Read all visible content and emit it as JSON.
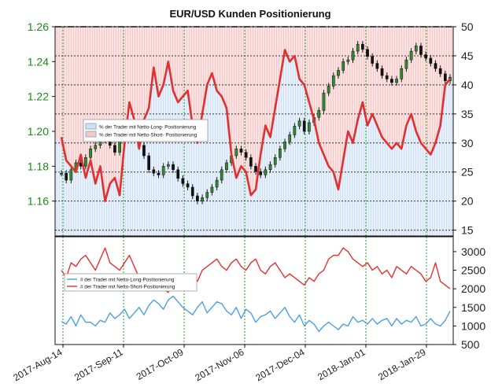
{
  "chart_data": [
    {
      "type": "line",
      "title": "EUR/USD Kunden Positionierung",
      "x_labels": [
        "2017-Aug-14",
        "2017-Sep-11",
        "2017-Oct-09",
        "2017-Nov-06",
        "2017-Dec-04",
        "2018-Jan-01",
        "2018-Jan-29"
      ],
      "ylim_left": [
        1.14,
        1.26
      ],
      "yticks_left": [
        "1.16",
        "1.18",
        "1.20",
        "1.22",
        "1.24",
        "1.26"
      ],
      "ylim_right": [
        14,
        50
      ],
      "yticks_right": [
        "15",
        "20",
        "25",
        "30",
        "35",
        "40",
        "45",
        "50"
      ],
      "reference_line": 50,
      "legend": [
        {
          "label": "% der Trader mit Netto-Long- Positionierung",
          "color": "#cfe2f5"
        },
        {
          "label": "% der Trader mit Netto-Short- Positionierung",
          "color": "#f7c6c6"
        }
      ],
      "colors": {
        "left_axis": "#1a8a1a",
        "short_line": "#e03030",
        "long_fill": "#e8f1fb",
        "short_fill": "#fbe3e3",
        "price": "#1a1a1a",
        "grid": "#2a9a2a"
      },
      "series": [
        {
          "name": "% der Trader mit Netto-Short- Positionierung",
          "axis": "right",
          "values": [
            31,
            27,
            26,
            25,
            28,
            24,
            27,
            23,
            26,
            20,
            23,
            24,
            21,
            30,
            37,
            34,
            29,
            34,
            36,
            43,
            38,
            40,
            44,
            39,
            37,
            38,
            39,
            33,
            30,
            35,
            40,
            42,
            39,
            38,
            36,
            28,
            24,
            26,
            25,
            21,
            22,
            28,
            33,
            31,
            36,
            41,
            46,
            44,
            45,
            41,
            40,
            37,
            34,
            30,
            28,
            26,
            25,
            22,
            27,
            32,
            30,
            34,
            37,
            33,
            35,
            33,
            31,
            30,
            29,
            30,
            29,
            33,
            35,
            32,
            30,
            29,
            28,
            30,
            33,
            40,
            41
          ]
        },
        {
          "name": "EUR/USD",
          "axis": "left",
          "values": [
            1.176,
            1.172,
            1.178,
            1.182,
            1.18,
            1.185,
            1.19,
            1.192,
            1.195,
            1.198,
            1.192,
            1.188,
            1.196,
            1.199,
            1.2,
            1.196,
            1.192,
            1.186,
            1.178,
            1.176,
            1.175,
            1.18,
            1.181,
            1.178,
            1.173,
            1.17,
            1.168,
            1.163,
            1.16,
            1.162,
            1.165,
            1.168,
            1.172,
            1.178,
            1.182,
            1.186,
            1.19,
            1.188,
            1.185,
            1.18,
            1.177,
            1.175,
            1.178,
            1.181,
            1.185,
            1.19,
            1.194,
            1.198,
            1.203,
            1.206,
            1.2,
            1.205,
            1.208,
            1.212,
            1.222,
            1.226,
            1.232,
            1.235,
            1.24,
            1.241,
            1.246,
            1.25,
            1.247,
            1.243,
            1.239,
            1.236,
            1.232,
            1.23,
            1.228,
            1.23,
            1.236,
            1.241,
            1.246,
            1.249,
            1.244,
            1.242,
            1.239,
            1.236,
            1.233,
            1.229,
            1.231
          ]
        }
      ]
    },
    {
      "type": "line",
      "ylim": [
        500,
        3400
      ],
      "yticks": [
        "500",
        "1000",
        "1500",
        "2000",
        "2500",
        "3000"
      ],
      "legend": [
        {
          "label": "# der Trader mit Netto-Long-Positionierung",
          "color": "#4f9fe0"
        },
        {
          "label": "# der Trader mit Netto-Short-Positionierung",
          "color": "#e63030"
        }
      ],
      "series": [
        {
          "name": "# der Trader mit Netto-Long-Positionierung",
          "color": "#4f9fe0",
          "values": [
            1120,
            1050,
            1250,
            1000,
            1300,
            1100,
            1100,
            1000,
            1150,
            1100,
            1350,
            1200,
            1300,
            1450,
            1200,
            1350,
            1500,
            1300,
            1550,
            1700,
            1600,
            1450,
            1700,
            1800,
            1650,
            1500,
            1400,
            1300,
            1500,
            1650,
            1350,
            1500,
            1650,
            1600,
            1400,
            1300,
            1500,
            1200,
            1450,
            1350,
            1100,
            1250,
            1300,
            1400,
            1200,
            1350,
            1500,
            1250,
            1100,
            1300,
            1000,
            1150,
            1050,
            850,
            1000,
            1100,
            1000,
            900,
            1050,
            1000,
            1250,
            1100,
            1150,
            1050,
            1200,
            1050,
            1150,
            1200,
            1000,
            1200,
            1050,
            1150,
            1100,
            1250,
            1000,
            1050,
            1200,
            1050,
            1000,
            1150,
            1400
          ]
        },
        {
          "name": "# der Trader mit Netto-Short-Positionierung",
          "color": "#e63030",
          "values": [
            2500,
            2300,
            2700,
            2600,
            2800,
            2900,
            2700,
            2500,
            2800,
            3100,
            2700,
            2600,
            2500,
            2700,
            2900,
            2600,
            2300,
            2250,
            2100,
            2300,
            2100,
            2000,
            1900,
            2200,
            2000,
            2100,
            2300,
            2400,
            2200,
            2500,
            2600,
            2700,
            2800,
            2600,
            2500,
            2700,
            2800,
            2600,
            2500,
            2700,
            2800,
            2500,
            2400,
            2600,
            2700,
            2500,
            2300,
            2400,
            2300,
            2200,
            2100,
            2300,
            2200,
            2400,
            2500,
            2800,
            2900,
            2900,
            3100,
            3000,
            2800,
            2700,
            2600,
            2700,
            2500,
            2600,
            2400,
            2500,
            2300,
            2600,
            2500,
            2400,
            2600,
            2500,
            2400,
            2200,
            2300,
            2700,
            2200,
            2100,
            2000
          ]
        }
      ]
    }
  ]
}
